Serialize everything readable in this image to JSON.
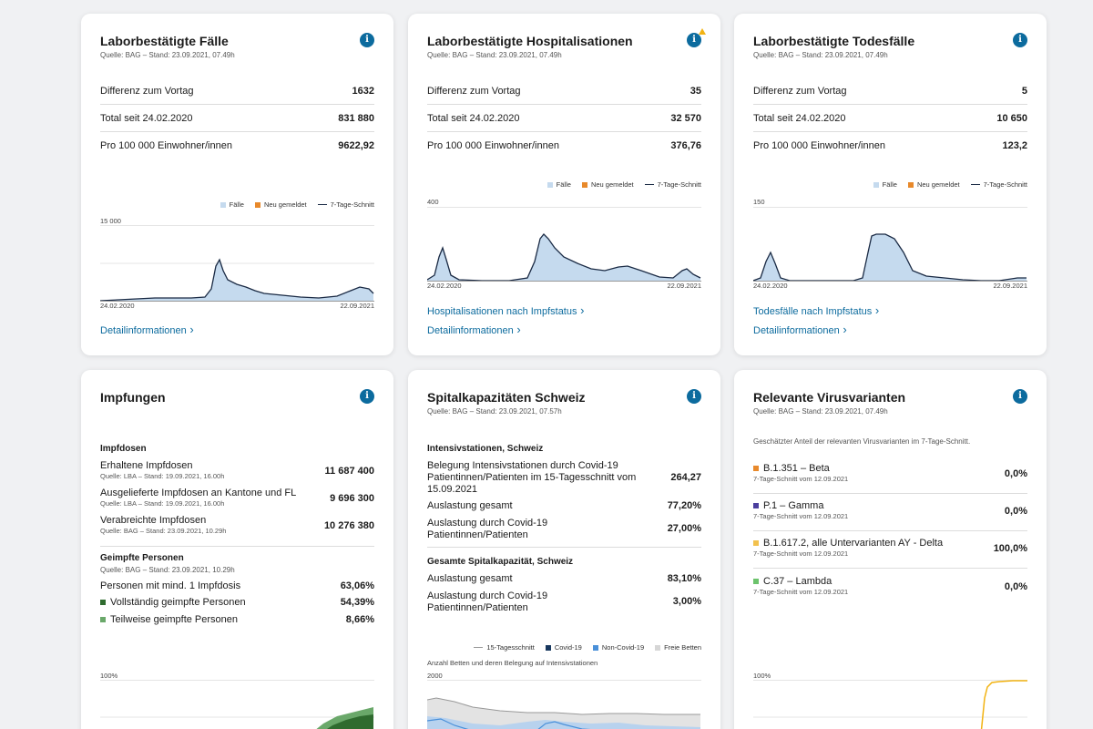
{
  "cases": {
    "title": "Laborbestätigte Fälle",
    "source": "Quelle: BAG – Stand: 23.09.2021, 07.49h",
    "rows": [
      {
        "label": "Differenz zum Vortag",
        "value": "1632"
      },
      {
        "label": "Total seit 24.02.2020",
        "value": "831 880"
      },
      {
        "label": "Pro 100 000 Einwohner/innen",
        "value": "9622,92"
      }
    ],
    "legend": [
      "Fälle",
      "Neu gemeldet",
      "7-Tage-Schnitt"
    ],
    "ymax": "15 000",
    "xstart": "24.02.2020",
    "xend": "22.09.2021",
    "link_detail": "Detailinformationen"
  },
  "hosp": {
    "title": "Laborbestätigte Hospitalisationen",
    "source": "Quelle: BAG – Stand: 23.09.2021, 07.49h",
    "rows": [
      {
        "label": "Differenz zum Vortag",
        "value": "35"
      },
      {
        "label": "Total seit 24.02.2020",
        "value": "32 570"
      },
      {
        "label": "Pro 100 000 Einwohner/innen",
        "value": "376,76"
      }
    ],
    "legend": [
      "Fälle",
      "Neu gemeldet",
      "7-Tage-Schnitt"
    ],
    "ymax": "400",
    "xstart": "24.02.2020",
    "xend": "22.09.2021",
    "link_status": "Hospitalisationen nach Impfstatus",
    "link_detail": "Detailinformationen"
  },
  "deaths": {
    "title": "Laborbestätigte Todesfälle",
    "source": "Quelle: BAG – Stand: 23.09.2021, 07.49h",
    "rows": [
      {
        "label": "Differenz zum Vortag",
        "value": "5"
      },
      {
        "label": "Total seit 24.02.2020",
        "value": "10 650"
      },
      {
        "label": "Pro 100 000 Einwohner/innen",
        "value": "123,2"
      }
    ],
    "legend": [
      "Fälle",
      "Neu gemeldet",
      "7-Tage-Schnitt"
    ],
    "ymax": "150",
    "xstart": "24.02.2020",
    "xend": "22.09.2021",
    "link_status": "Todesfälle nach Impfstatus",
    "link_detail": "Detailinformationen"
  },
  "vacc": {
    "title": "Impfungen",
    "doses_head": "Impfdosen",
    "doses": [
      {
        "label": "Erhaltene Impfdosen",
        "source": "Quelle: LBA – Stand: 19.09.2021, 16.00h",
        "value": "11 687 400"
      },
      {
        "label": "Ausgelieferte Impfdosen an Kantone und FL",
        "source": "Quelle: LBA – Stand: 19.09.2021, 16.00h",
        "value": "9 696 300"
      },
      {
        "label": "Verabreichte Impfdosen",
        "source": "Quelle: BAG – Stand: 23.09.2021, 10.29h",
        "value": "10 276 380"
      }
    ],
    "persons_head": "Geimpfte Personen",
    "persons_source": "Quelle: BAG – Stand: 23.09.2021, 10.29h",
    "persons": [
      {
        "label": "Personen mit mind. 1 Impfdosis",
        "value": "63,06%"
      },
      {
        "label": "Vollständig geimpfte Personen",
        "value": "54,39%"
      },
      {
        "label": "Teilweise geimpfte Personen",
        "value": "8,66%"
      }
    ],
    "ymax": "100%",
    "colors": {
      "full": "#2f6b2f",
      "partial": "#6aa86a"
    }
  },
  "hospcap": {
    "title": "Spitalkapazitäten Schweiz",
    "source": "Quelle: BAG – Stand: 23.09.2021, 07.57h",
    "icu_head": "Intensivstationen, Schweiz",
    "icu_rows": [
      {
        "label": "Belegung Intensivstationen durch Covid-19 Patientinnen/Patienten im 15-Tagesschnitt vom 15.09.2021",
        "value": "264,27"
      },
      {
        "label": "Auslastung gesamt",
        "value": "77,20%"
      },
      {
        "label": "Auslastung durch Covid-19 Patientinnen/Patienten",
        "value": "27,00%"
      }
    ],
    "total_head": "Gesamte Spitalkapazität, Schweiz",
    "total_rows": [
      {
        "label": "Auslastung gesamt",
        "value": "83,10%"
      },
      {
        "label": "Auslastung durch Covid-19 Patientinnen/Patienten",
        "value": "3,00%"
      }
    ],
    "legend": [
      "15-Tagesschnitt",
      "Covid-19",
      "Non-Covid-19",
      "Freie Betten"
    ],
    "chart_caption": "Anzahl Betten und deren Belegung auf Intensivstationen",
    "ymax": "2000"
  },
  "variants": {
    "title": "Relevante Virusvarianten",
    "source": "Quelle: BAG – Stand: 23.09.2021, 07.49h",
    "intro": "Geschätzter Anteil der relevanten Virusvarianten im 7-Tage-Schnitt.",
    "items": [
      {
        "label": "B.1.351 – Beta",
        "sub": "7-Tage-Schnitt vom 12.09.2021",
        "value": "0,0%",
        "color": "#e8892b"
      },
      {
        "label": "P.1 – Gamma",
        "sub": "7-Tage-Schnitt vom 12.09.2021",
        "value": "0,0%",
        "color": "#4b3f9e"
      },
      {
        "label": "B.1.617.2, alle Untervarianten AY - Delta",
        "sub": "7-Tage-Schnitt vom 12.09.2021",
        "value": "100,0%",
        "color": "#f2c14e"
      },
      {
        "label": "C.37 – Lambda",
        "sub": "7-Tage-Schnitt vom 12.09.2021",
        "value": "0,0%",
        "color": "#6cc36c"
      }
    ],
    "ymax": "100%"
  },
  "colors": {
    "link": "#0c6b9e",
    "area": "#c5daee",
    "line": "#1a2a44",
    "new": "#e8892b",
    "covid": "#17375e",
    "noncovid": "#4a90d9",
    "free": "#d6d6d6"
  }
}
